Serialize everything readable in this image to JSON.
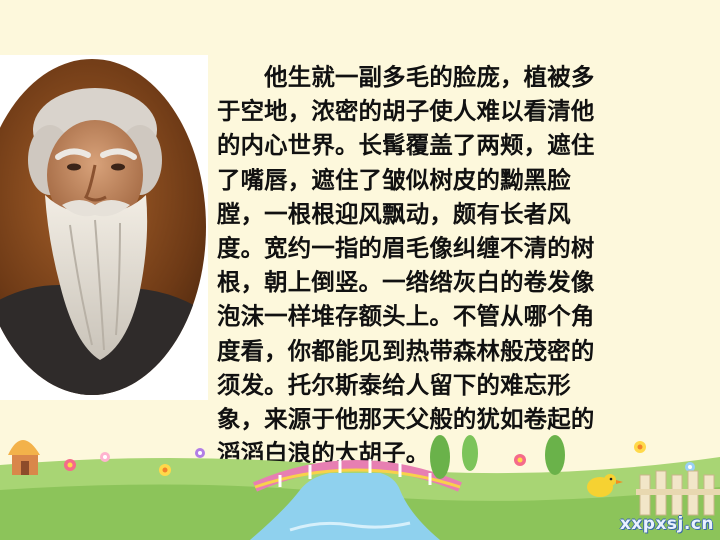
{
  "passage": {
    "lines": [
      "　　他生就一副多毛的脸庞，植被多",
      "于空地，浓密的胡子使人难以看清他",
      "的内心世界。长髯覆盖了两颊，遮住",
      "了嘴唇，遮住了皱似树皮的黝黑脸",
      "膛，一根根迎风飘动，颇有长者风",
      "度。宽约一指的眉毛像纠缠不清的树",
      "根，朝上倒竖。一绺绺灰白的卷发像",
      "泡沫一样堆存额头上。不管从哪个角",
      "度看，你都能见到热带森林般茂密的",
      "须发。托尔斯泰给人留下的难忘形",
      "象，来源于他那天父般的犹如卷起的",
      "滔滔白浪的大胡子。"
    ]
  },
  "watermark": "xxpxsj.cn",
  "colors": {
    "background": "#fdf8dc",
    "text": "#111111",
    "grass": "#9ccf6a",
    "stream": "#8fd1ee",
    "bridge": "#e77fb2"
  }
}
